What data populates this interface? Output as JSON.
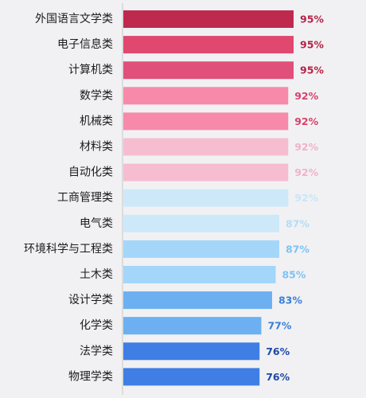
{
  "chart_data": {
    "type": "bar",
    "orientation": "horizontal",
    "categories": [
      "外国语言文学类",
      "电子信息类",
      "计算机类",
      "数学类",
      "机械类",
      "材料类",
      "自动化类",
      "工商管理类",
      "电气类",
      "环境科学与工程类",
      "土木类",
      "设计学类",
      "化学类",
      "法学类",
      "物理学类"
    ],
    "values": [
      95,
      95,
      95,
      92,
      92,
      92,
      92,
      92,
      87,
      87,
      85,
      83,
      77,
      76,
      76
    ],
    "value_labels": [
      "95%",
      "95%",
      "95%",
      "92%",
      "92%",
      "92%",
      "92%",
      "92%",
      "87%",
      "87%",
      "85%",
      "83%",
      "77%",
      "76%",
      "76%"
    ],
    "bar_colors": [
      "#c0294e",
      "#e0486f",
      "#e0507a",
      "#f78aaa",
      "#f78aaa",
      "#f6bdd0",
      "#f6bdd0",
      "#cde9f9",
      "#cde9f9",
      "#a4d6fa",
      "#a4d6fa",
      "#6cb0f1",
      "#6cb0f1",
      "#3f7ee4",
      "#3f7ee4"
    ],
    "label_colors": [
      "#b32347",
      "#b32347",
      "#b32347",
      "#d9406a",
      "#d9406a",
      "#f2b2c6",
      "#f2b2c6",
      "#c7e6f8",
      "#b6dcf5",
      "#7fc3f3",
      "#7fc3f3",
      "#3a7fd6",
      "#3a7fd6",
      "#1f4aa8",
      "#1f4aa8"
    ],
    "title": "",
    "xlabel": "",
    "ylabel": "",
    "grid": false
  }
}
